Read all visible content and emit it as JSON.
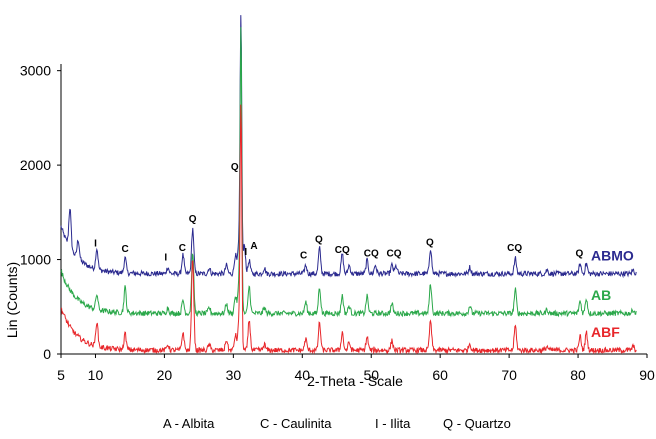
{
  "chart_data": {
    "type": "line",
    "title": "",
    "xlabel": "2-Theta - Scale",
    "ylabel": "Lin (Counts)",
    "xlim": [
      5,
      90
    ],
    "ylim": [
      0,
      3600
    ],
    "x_ticks": [
      5,
      10,
      20,
      30,
      40,
      50,
      60,
      70,
      80,
      90
    ],
    "y_ticks": [
      0,
      1000,
      2000,
      3000
    ],
    "grid": false,
    "series": [
      {
        "name": "ABMO",
        "color": "#2b2a8f",
        "baseline": 850,
        "start_rise": 500,
        "peaks": [
          [
            6.3,
            420
          ],
          [
            7.5,
            200
          ],
          [
            10.2,
            220
          ],
          [
            14.3,
            160
          ],
          [
            20.5,
            70
          ],
          [
            22.7,
            200
          ],
          [
            24.1,
            480
          ],
          [
            26.5,
            60
          ],
          [
            29.0,
            90
          ],
          [
            30.3,
            200
          ],
          [
            30.8,
            300
          ],
          [
            31.1,
            2700
          ],
          [
            31.6,
            300
          ],
          [
            32.3,
            140
          ],
          [
            34.5,
            60
          ],
          [
            40.5,
            90
          ],
          [
            42.5,
            270
          ],
          [
            45.8,
            210
          ],
          [
            46.8,
            90
          ],
          [
            49.4,
            140
          ],
          [
            50.6,
            90
          ],
          [
            53.0,
            90
          ],
          [
            53.6,
            80
          ],
          [
            58.6,
            270
          ],
          [
            64.3,
            70
          ],
          [
            70.9,
            160
          ],
          [
            75.5,
            40
          ],
          [
            80.3,
            100
          ],
          [
            81.2,
            110
          ],
          [
            88.0,
            40
          ]
        ]
      },
      {
        "name": "AB",
        "color": "#2ba84a",
        "baseline": 430,
        "start_rise": 450,
        "peaks": [
          [
            10.2,
            160
          ],
          [
            14.3,
            270
          ],
          [
            20.5,
            60
          ],
          [
            22.7,
            140
          ],
          [
            24.1,
            650
          ],
          [
            26.5,
            60
          ],
          [
            29.0,
            100
          ],
          [
            30.3,
            180
          ],
          [
            30.8,
            280
          ],
          [
            31.1,
            3000
          ],
          [
            32.3,
            290
          ],
          [
            34.5,
            60
          ],
          [
            40.5,
            120
          ],
          [
            42.5,
            280
          ],
          [
            45.8,
            190
          ],
          [
            46.8,
            80
          ],
          [
            49.4,
            180
          ],
          [
            53.0,
            100
          ],
          [
            58.6,
            310
          ],
          [
            64.3,
            80
          ],
          [
            70.9,
            250
          ],
          [
            75.5,
            40
          ],
          [
            80.3,
            130
          ],
          [
            81.2,
            160
          ],
          [
            88.0,
            40
          ]
        ]
      },
      {
        "name": "ABF",
        "color": "#e8262a",
        "baseline": 40,
        "start_rise": 450,
        "peaks": [
          [
            10.2,
            260
          ],
          [
            14.3,
            170
          ],
          [
            20.5,
            60
          ],
          [
            22.7,
            190
          ],
          [
            24.1,
            980
          ],
          [
            26.5,
            60
          ],
          [
            29.0,
            110
          ],
          [
            30.3,
            160
          ],
          [
            30.8,
            260
          ],
          [
            31.1,
            2580
          ],
          [
            32.3,
            320
          ],
          [
            34.5,
            60
          ],
          [
            40.5,
            120
          ],
          [
            42.5,
            290
          ],
          [
            45.8,
            190
          ],
          [
            46.8,
            80
          ],
          [
            49.4,
            140
          ],
          [
            53.0,
            100
          ],
          [
            58.6,
            310
          ],
          [
            64.3,
            70
          ],
          [
            70.9,
            260
          ],
          [
            75.5,
            40
          ],
          [
            80.3,
            150
          ],
          [
            81.2,
            190
          ],
          [
            88.0,
            40
          ]
        ]
      }
    ],
    "peak_labels": [
      {
        "text": "I",
        "x": 10.0,
        "y": 1140
      },
      {
        "text": "C",
        "x": 14.3,
        "y": 1080
      },
      {
        "text": "I",
        "x": 20.2,
        "y": 990
      },
      {
        "text": "C",
        "x": 22.6,
        "y": 1090
      },
      {
        "text": "Q",
        "x": 24.1,
        "y": 1400
      },
      {
        "text": "Q",
        "x": 30.2,
        "y": 1950
      },
      {
        "text": "I",
        "x": 31.8,
        "y": 1050
      },
      {
        "text": "A",
        "x": 33.0,
        "y": 1110
      },
      {
        "text": "C",
        "x": 40.2,
        "y": 1010
      },
      {
        "text": "Q",
        "x": 42.4,
        "y": 1180
      },
      {
        "text": "CQ",
        "x": 45.8,
        "y": 1070
      },
      {
        "text": "CQ",
        "x": 50.0,
        "y": 1030
      },
      {
        "text": "CQ",
        "x": 53.3,
        "y": 1030
      },
      {
        "text": "Q",
        "x": 58.5,
        "y": 1150
      },
      {
        "text": "CQ",
        "x": 70.8,
        "y": 1090
      },
      {
        "text": "Q",
        "x": 80.2,
        "y": 1030
      }
    ]
  },
  "legend_note": {
    "a": "A - Albita",
    "c": "C - Caulinita",
    "i": "I - Ilita",
    "q": "Q - Quartzo"
  }
}
